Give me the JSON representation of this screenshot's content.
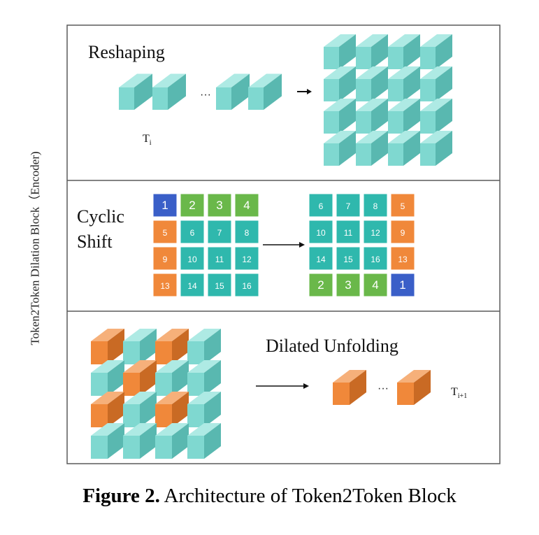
{
  "side_label": "Token2Token Dilation Block（Encoder)",
  "panels": {
    "reshaping": {
      "title": "Reshaping",
      "token_label": "T",
      "token_sub": "i",
      "ellipsis": "···"
    },
    "cyclic_shift": {
      "title_line1": "Cyclic",
      "title_line2": "Shift",
      "grid_before": [
        [
          "1",
          "2",
          "3",
          "4"
        ],
        [
          "5",
          "6",
          "7",
          "8"
        ],
        [
          "9",
          "10",
          "11",
          "12"
        ],
        [
          "13",
          "14",
          "15",
          "16"
        ]
      ],
      "grid_after": [
        [
          "6",
          "7",
          "8",
          "5"
        ],
        [
          "10",
          "11",
          "12",
          "9"
        ],
        [
          "14",
          "15",
          "16",
          "13"
        ],
        [
          "2",
          "3",
          "4",
          "1"
        ]
      ]
    },
    "dilated_unfolding": {
      "title": "Dilated Unfolding",
      "token_label": "T",
      "token_sub": "i+1",
      "ellipsis": "···"
    }
  },
  "caption": {
    "bold": "Figure 2.",
    "text": " Architecture of Token2Token Block"
  },
  "colors": {
    "teal": "#7fd8d0",
    "orange": "#f0883a",
    "blue": "#3a5fc8",
    "green": "#6ab84a",
    "cell_teal": "#2fb8ad",
    "border": "#5a5a5a"
  }
}
